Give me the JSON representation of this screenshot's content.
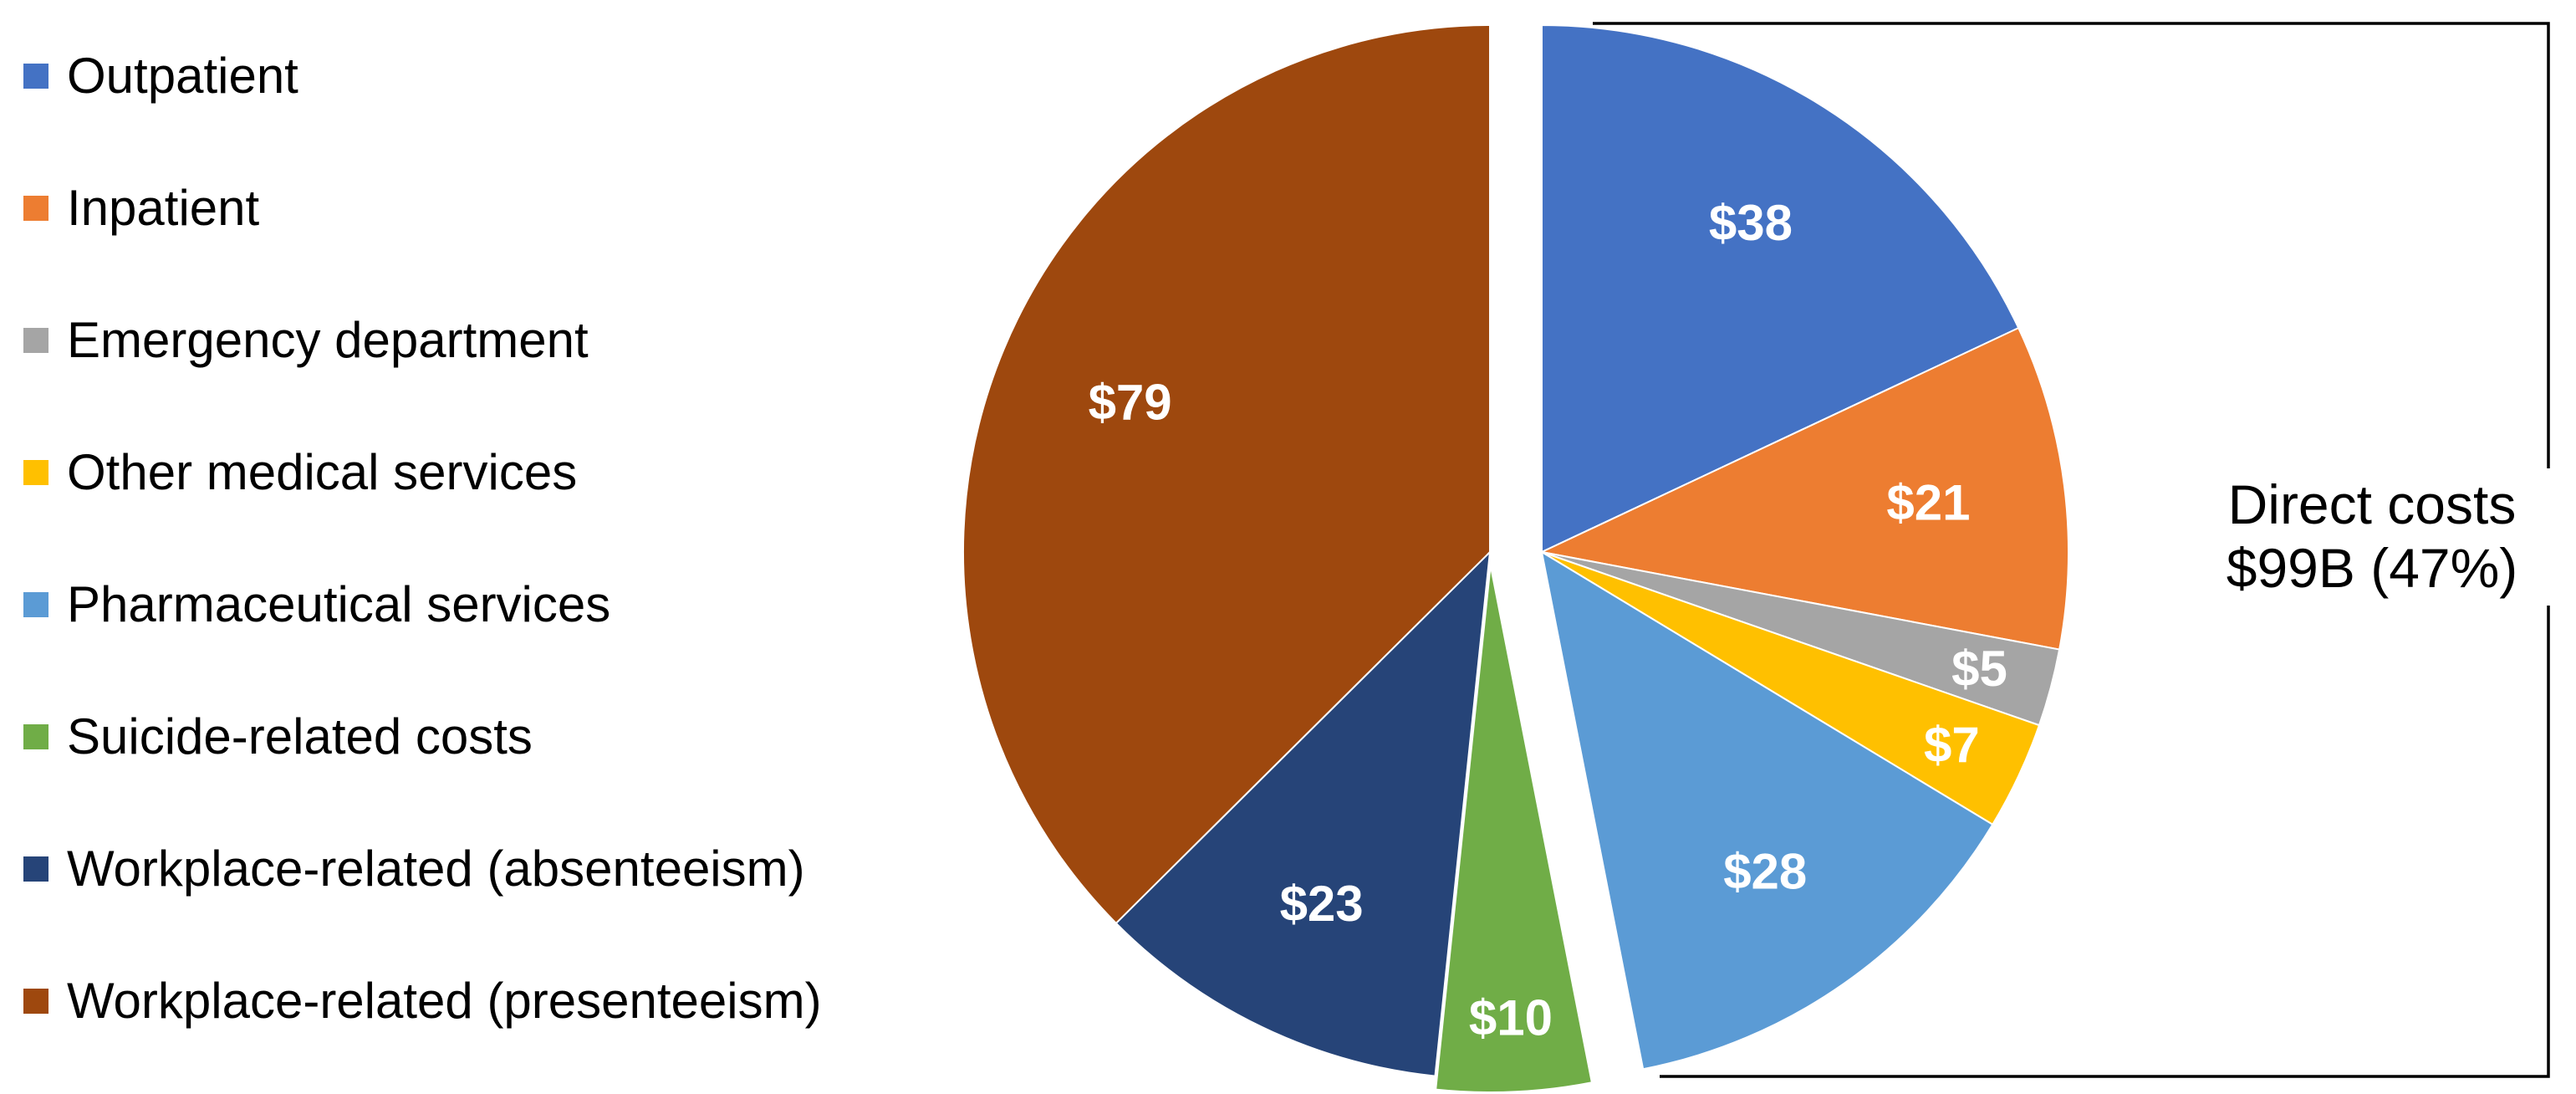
{
  "background": "#FFFFFF",
  "chart_data": {
    "type": "pie",
    "direction": "clockwise",
    "start_position": "top",
    "legend_position": "left",
    "exploded_group": "direct",
    "slices": [
      {
        "label": "Outpatient",
        "value": 38,
        "value_label": "$38",
        "color": "#4472C4",
        "group": "direct"
      },
      {
        "label": "Inpatient",
        "value": 21,
        "value_label": "$21",
        "color": "#ED7D31",
        "group": "direct"
      },
      {
        "label": "Emergency department",
        "value": 5,
        "value_label": "$5",
        "color": "#A5A5A5",
        "group": "direct"
      },
      {
        "label": "Other medical services",
        "value": 7,
        "value_label": "$7",
        "color": "#FFC000",
        "group": "direct"
      },
      {
        "label": "Pharmaceutical services",
        "value": 28,
        "value_label": "$28",
        "color": "#5B9BD5",
        "group": "direct"
      },
      {
        "label": "Suicide-related costs",
        "value": 10,
        "value_label": "$10",
        "color": "#70AD47",
        "group": "indirect",
        "exploded": true
      },
      {
        "label": "Workplace-related (absenteeism)",
        "value": 23,
        "value_label": "$23",
        "color": "#264478",
        "group": "indirect"
      },
      {
        "label": "Workplace-related (presenteeism)",
        "value": 79,
        "value_label": "$79",
        "color": "#9E480E",
        "group": "indirect"
      }
    ],
    "annotation": {
      "line1": "Direct costs",
      "line2": "$99B (47%)"
    },
    "label_text_color": "#FFFFFF",
    "bracket_color": "#000000"
  }
}
